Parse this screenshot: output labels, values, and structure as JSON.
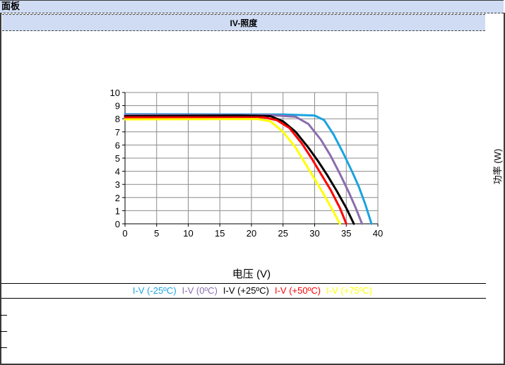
{
  "panel": {
    "title": "面板"
  },
  "chart_data": {
    "type": "line",
    "title": "IV-照度",
    "xlabel": "电压 (V)",
    "ylabel": "功率 (W)",
    "xlim": [
      0,
      40
    ],
    "ylim": [
      0,
      10
    ],
    "xticks": [
      0,
      5,
      10,
      15,
      20,
      25,
      30,
      35,
      40
    ],
    "yticks": [
      0,
      1,
      2,
      3,
      4,
      5,
      6,
      7,
      8,
      9,
      10
    ],
    "grid": true,
    "legend_position": "bottom",
    "series": [
      {
        "name": "I-V (-25ºC)",
        "color": "#1aa3e0",
        "x": [
          0,
          25,
          30,
          31.5,
          33,
          34.5,
          36,
          37,
          38,
          39
        ],
        "y": [
          8.35,
          8.33,
          8.25,
          7.9,
          6.8,
          5.4,
          3.9,
          2.8,
          1.5,
          0
        ]
      },
      {
        "name": "I-V (0ºC)",
        "color": "#8a6dae",
        "x": [
          0,
          23,
          27,
          29,
          31,
          32.5,
          34,
          35.5,
          36.5,
          37.5
        ],
        "y": [
          8.3,
          8.28,
          8.15,
          7.6,
          6.4,
          5.2,
          3.8,
          2.3,
          1.2,
          0
        ]
      },
      {
        "name": "I-V (+25ºC)",
        "color": "#000000",
        "x": [
          0,
          18,
          23,
          25,
          27,
          29,
          30.5,
          32,
          33.5,
          35,
          36.2
        ],
        "y": [
          8.2,
          8.25,
          8.2,
          7.8,
          7.0,
          5.8,
          4.8,
          3.7,
          2.5,
          1.2,
          0
        ]
      },
      {
        "name": "I-V (+50ºC)",
        "color": "#ff0000",
        "x": [
          0,
          22,
          24,
          26,
          28,
          29.5,
          31,
          32.5,
          34,
          35
        ],
        "y": [
          8.1,
          8.1,
          7.9,
          7.3,
          6.1,
          5.0,
          3.8,
          2.6,
          1.2,
          0
        ]
      },
      {
        "name": "I-V (+75ºC)",
        "color": "#ffff00",
        "x": [
          0,
          21,
          23,
          25,
          27,
          28.5,
          30,
          31.5,
          33,
          34
        ],
        "y": [
          7.95,
          7.98,
          7.8,
          7.0,
          5.8,
          4.6,
          3.4,
          2.2,
          0.9,
          0
        ]
      }
    ]
  }
}
